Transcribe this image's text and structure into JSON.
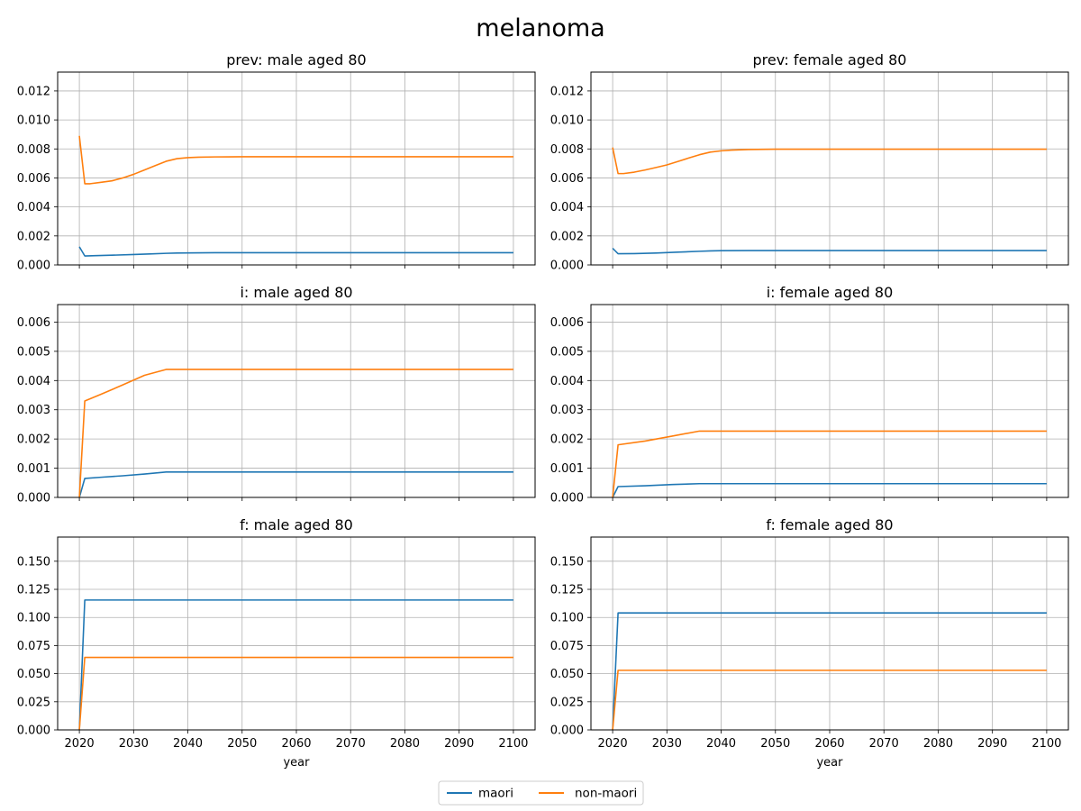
{
  "figure": {
    "title": "melanoma",
    "legend": {
      "placement": "bottom-center",
      "columns": 2,
      "entries": [
        {
          "label": "maori",
          "color": "#1f77b4"
        },
        {
          "label": "non-maori",
          "color": "#ff7f0e"
        }
      ]
    }
  },
  "chart_data": [
    {
      "type": "line",
      "title": "prev: male aged 80",
      "xlabel": "",
      "ylabel": "",
      "xlim": [
        2016,
        2104
      ],
      "ylim": [
        0,
        0.0133
      ],
      "xticks": [
        2020,
        2030,
        2040,
        2050,
        2060,
        2070,
        2080,
        2090,
        2100
      ],
      "yticks": [
        "0.000",
        "0.002",
        "0.004",
        "0.006",
        "0.008",
        "0.010",
        "0.012"
      ],
      "show_xticklabels": false,
      "grid": true,
      "series": [
        {
          "name": "maori",
          "color": "#1f77b4",
          "x": [
            2020,
            2021,
            2023,
            2026,
            2030,
            2033,
            2036,
            2038,
            2040,
            2045,
            2050,
            2100
          ],
          "y": [
            0.00125,
            0.00062,
            0.00064,
            0.00067,
            0.00072,
            0.00076,
            0.0008,
            0.00082,
            0.00083,
            0.00084,
            0.00084,
            0.00084
          ]
        },
        {
          "name": "non-maori",
          "color": "#ff7f0e",
          "x": [
            2020,
            2021,
            2022,
            2024,
            2026,
            2028,
            2030,
            2032,
            2034,
            2036,
            2038,
            2040,
            2042,
            2045,
            2050,
            2100
          ],
          "y": [
            0.0089,
            0.0056,
            0.0056,
            0.0057,
            0.0058,
            0.006,
            0.00625,
            0.00655,
            0.00685,
            0.00715,
            0.00733,
            0.0074,
            0.00743,
            0.00745,
            0.00746,
            0.00746
          ]
        }
      ]
    },
    {
      "type": "line",
      "title": "prev: female aged 80",
      "xlabel": "",
      "ylabel": "",
      "xlim": [
        2016,
        2104
      ],
      "ylim": [
        0,
        0.0133
      ],
      "xticks": [
        2020,
        2030,
        2040,
        2050,
        2060,
        2070,
        2080,
        2090,
        2100
      ],
      "yticks": [
        "0.000",
        "0.002",
        "0.004",
        "0.006",
        "0.008",
        "0.010",
        "0.012"
      ],
      "show_xticklabels": false,
      "grid": true,
      "series": [
        {
          "name": "maori",
          "color": "#1f77b4",
          "x": [
            2020,
            2021,
            2024,
            2028,
            2032,
            2036,
            2038,
            2040,
            2045,
            2050,
            2100
          ],
          "y": [
            0.00115,
            0.00077,
            0.00078,
            0.00082,
            0.00088,
            0.00094,
            0.00097,
            0.00098,
            0.00099,
            0.00099,
            0.00099
          ]
        },
        {
          "name": "non-maori",
          "color": "#ff7f0e",
          "x": [
            2020,
            2021,
            2022,
            2024,
            2026,
            2028,
            2030,
            2032,
            2034,
            2036,
            2038,
            2040,
            2042,
            2045,
            2050,
            2100
          ],
          "y": [
            0.0081,
            0.0063,
            0.0063,
            0.0064,
            0.00655,
            0.00672,
            0.0069,
            0.00713,
            0.00737,
            0.0076,
            0.00778,
            0.00787,
            0.00792,
            0.00796,
            0.00798,
            0.00798
          ]
        }
      ]
    },
    {
      "type": "line",
      "title": "i: male aged 80",
      "xlabel": "",
      "ylabel": "",
      "xlim": [
        2016,
        2104
      ],
      "ylim": [
        0,
        0.0066
      ],
      "xticks": [
        2020,
        2030,
        2040,
        2050,
        2060,
        2070,
        2080,
        2090,
        2100
      ],
      "yticks": [
        "0.000",
        "0.001",
        "0.002",
        "0.003",
        "0.004",
        "0.005",
        "0.006"
      ],
      "show_xticklabels": false,
      "grid": true,
      "series": [
        {
          "name": "maori",
          "color": "#1f77b4",
          "x": [
            2020,
            2021,
            2024,
            2028,
            2032,
            2036,
            2100
          ],
          "y": [
            0.0,
            0.00065,
            0.00069,
            0.00074,
            0.0008,
            0.00087,
            0.00087
          ]
        },
        {
          "name": "non-maori",
          "color": "#ff7f0e",
          "x": [
            2020,
            2021,
            2024,
            2028,
            2032,
            2036,
            2100
          ],
          "y": [
            0.0,
            0.0033,
            0.00353,
            0.00385,
            0.00418,
            0.00438,
            0.00438
          ]
        }
      ]
    },
    {
      "type": "line",
      "title": "i: female aged 80",
      "xlabel": "",
      "ylabel": "",
      "xlim": [
        2016,
        2104
      ],
      "ylim": [
        0,
        0.0066
      ],
      "xticks": [
        2020,
        2030,
        2040,
        2050,
        2060,
        2070,
        2080,
        2090,
        2100
      ],
      "yticks": [
        "0.000",
        "0.001",
        "0.002",
        "0.003",
        "0.004",
        "0.005",
        "0.006"
      ],
      "show_xticklabels": false,
      "grid": true,
      "series": [
        {
          "name": "maori",
          "color": "#1f77b4",
          "x": [
            2020,
            2021,
            2026,
            2031,
            2036,
            2100
          ],
          "y": [
            0.0,
            0.00037,
            0.0004,
            0.00044,
            0.00047,
            0.00047
          ]
        },
        {
          "name": "non-maori",
          "color": "#ff7f0e",
          "x": [
            2020,
            2021,
            2026,
            2031,
            2036,
            2100
          ],
          "y": [
            0.0,
            0.0018,
            0.00193,
            0.0021,
            0.00227,
            0.00227
          ]
        }
      ]
    },
    {
      "type": "line",
      "title": "f: male aged 80",
      "xlabel": "year",
      "ylabel": "",
      "xlim": [
        2016,
        2104
      ],
      "ylim": [
        0,
        0.1715
      ],
      "xticks": [
        2020,
        2030,
        2040,
        2050,
        2060,
        2070,
        2080,
        2090,
        2100
      ],
      "yticks": [
        "0.000",
        "0.025",
        "0.050",
        "0.075",
        "0.100",
        "0.125",
        "0.150"
      ],
      "show_xticklabels": true,
      "grid": true,
      "series": [
        {
          "name": "maori",
          "color": "#1f77b4",
          "x": [
            2020,
            2021,
            2100
          ],
          "y": [
            0.0,
            0.1155,
            0.1155
          ]
        },
        {
          "name": "non-maori",
          "color": "#ff7f0e",
          "x": [
            2020,
            2021,
            2100
          ],
          "y": [
            0.0,
            0.0645,
            0.0645
          ]
        }
      ]
    },
    {
      "type": "line",
      "title": "f: female aged 80",
      "xlabel": "year",
      "ylabel": "",
      "xlim": [
        2016,
        2104
      ],
      "ylim": [
        0,
        0.1715
      ],
      "xticks": [
        2020,
        2030,
        2040,
        2050,
        2060,
        2070,
        2080,
        2090,
        2100
      ],
      "yticks": [
        "0.000",
        "0.025",
        "0.050",
        "0.075",
        "0.100",
        "0.125",
        "0.150"
      ],
      "show_xticklabels": true,
      "grid": true,
      "series": [
        {
          "name": "maori",
          "color": "#1f77b4",
          "x": [
            2020,
            2021,
            2100
          ],
          "y": [
            0.0,
            0.104,
            0.104
          ]
        },
        {
          "name": "non-maori",
          "color": "#ff7f0e",
          "x": [
            2020,
            2021,
            2100
          ],
          "y": [
            0.0,
            0.053,
            0.053
          ]
        }
      ]
    }
  ]
}
